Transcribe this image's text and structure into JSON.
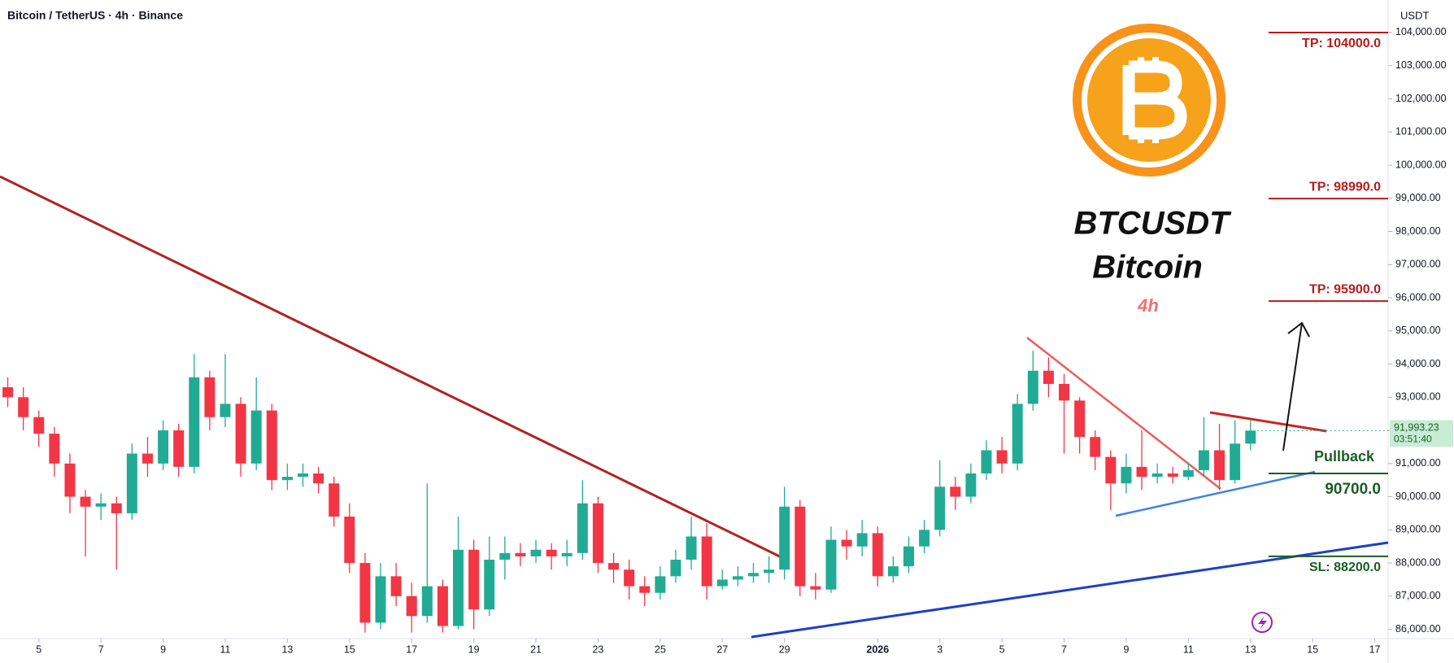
{
  "chart_data": {
    "type": "candlestick",
    "header": "Bitcoin / TetherUS · 4h · Binance",
    "currency": "USDT",
    "title": "BTCUSDT",
    "subtitle": "Bitcoin",
    "timeframe": "4h",
    "pullback_label": "Pullback",
    "countdown": "03:51:40",
    "last_price": {
      "value": 91993.23,
      "label": "91,993.23"
    },
    "up_color": "#22ab94",
    "down_color": "#f23645",
    "x": [
      4,
      4.5,
      5,
      5.5,
      6,
      6.5,
      7,
      7.5,
      8,
      8.5,
      9,
      9.5,
      10,
      10.5,
      11,
      11.5,
      12,
      12.5,
      13,
      13.5,
      14,
      14.5,
      15,
      15.5,
      16,
      16.5,
      17,
      17.5,
      18,
      18.5,
      19,
      19.5,
      20,
      20.5,
      21,
      21.5,
      22,
      22.5,
      23,
      23.5,
      24,
      24.5,
      25,
      25.5,
      26,
      26.5,
      27,
      27.5,
      28,
      28.5,
      29,
      29.5,
      30,
      30.5,
      31,
      31.5,
      32,
      32.5,
      33,
      33.5,
      34,
      34.5,
      35,
      35.5,
      36,
      36.5,
      37,
      37.5,
      38,
      38.5,
      39,
      39.5,
      40,
      40.5,
      41,
      41.5,
      42,
      42.5,
      43,
      43.5,
      44
    ],
    "open": [
      93300,
      93000,
      92400,
      91900,
      91000,
      90000,
      89700,
      89800,
      89500,
      91300,
      91000,
      92000,
      90900,
      93600,
      92400,
      92800,
      91000,
      92600,
      90500,
      90600,
      90700,
      90400,
      89400,
      88000,
      86200,
      87600,
      87000,
      86400,
      87300,
      86100,
      88400,
      86600,
      88100,
      88300,
      88200,
      88400,
      88200,
      88300,
      89800,
      88000,
      87800,
      87300,
      87100,
      87600,
      88100,
      88800,
      87300,
      87500,
      87600,
      87700,
      87800,
      89700,
      87300,
      87200,
      88700,
      88500,
      88900,
      87600,
      87900,
      88500,
      89000,
      90300,
      90000,
      90700,
      91400,
      91000,
      92800,
      93800,
      93400,
      92900,
      91800,
      91200,
      90400,
      90900,
      90600,
      90700,
      90600,
      90800,
      91400,
      90500,
      91600
    ],
    "high": [
      93600,
      93300,
      92600,
      92100,
      91300,
      90200,
      90100,
      90000,
      91600,
      91800,
      92300,
      92200,
      94300,
      93800,
      94300,
      93000,
      93600,
      92800,
      91000,
      91000,
      90900,
      90600,
      89800,
      88300,
      88000,
      88000,
      87400,
      90400,
      87500,
      89400,
      88700,
      88800,
      88800,
      88600,
      88700,
      88600,
      88700,
      90500,
      90000,
      88300,
      88100,
      87600,
      87900,
      88400,
      89400,
      89200,
      87800,
      87900,
      88000,
      88200,
      90300,
      89900,
      87700,
      89100,
      89000,
      89300,
      89100,
      88200,
      88800,
      89300,
      91100,
      90600,
      91000,
      91700,
      91800,
      93100,
      94400,
      94200,
      93700,
      93000,
      92000,
      91400,
      91300,
      92000,
      91000,
      90900,
      91000,
      92400,
      92200,
      92300,
      92300
    ],
    "low": [
      92700,
      92000,
      91500,
      90600,
      89500,
      88200,
      89300,
      87800,
      89300,
      90600,
      90800,
      90600,
      90700,
      92000,
      92100,
      90600,
      90800,
      90200,
      90200,
      90300,
      90100,
      89100,
      87700,
      85900,
      86000,
      86700,
      85900,
      86200,
      85900,
      86000,
      86000,
      86400,
      87500,
      87900,
      88000,
      87800,
      87900,
      88100,
      87700,
      87400,
      86900,
      86700,
      86900,
      87400,
      87800,
      86900,
      87200,
      87300,
      87400,
      87400,
      87500,
      87000,
      86900,
      87100,
      88100,
      88200,
      87300,
      87400,
      87700,
      88300,
      88800,
      89600,
      89800,
      90500,
      90700,
      90800,
      92600,
      93000,
      91300,
      91300,
      90800,
      89600,
      90100,
      90200,
      90400,
      90400,
      90500,
      90600,
      90200,
      90400,
      91400
    ],
    "close": [
      93000,
      92400,
      91900,
      91000,
      90000,
      89700,
      89800,
      89500,
      91300,
      91000,
      92000,
      90900,
      93600,
      92400,
      92800,
      91000,
      92600,
      90500,
      90600,
      90700,
      90400,
      89400,
      88000,
      86200,
      87600,
      87000,
      86400,
      87300,
      86100,
      88400,
      86600,
      88100,
      88300,
      88200,
      88400,
      88200,
      88300,
      89800,
      88000,
      87800,
      87300,
      87100,
      87600,
      88100,
      88800,
      87300,
      87500,
      87600,
      87700,
      87800,
      89700,
      87300,
      87200,
      88700,
      88500,
      88900,
      87600,
      87900,
      88500,
      89000,
      90300,
      90000,
      90700,
      91400,
      91000,
      92800,
      93800,
      93400,
      92900,
      91800,
      91200,
      90400,
      90900,
      90600,
      90700,
      90600,
      90800,
      91400,
      90500,
      91600,
      91993.23
    ],
    "xlim": [
      3.75,
      48.43
    ],
    "ylim": [
      85720,
      104980
    ],
    "xticks": [
      5,
      7,
      9,
      11,
      13,
      15,
      17,
      19,
      21,
      23,
      25,
      27,
      29,
      {
        "value": 32,
        "label": "2026"
      },
      {
        "value": 34,
        "label": "3"
      },
      {
        "value": 36,
        "label": "5"
      },
      {
        "value": 38,
        "label": "7"
      },
      {
        "value": 40,
        "label": "9"
      },
      {
        "value": 42,
        "label": "11"
      },
      {
        "value": 44,
        "label": "13"
      },
      {
        "value": 46,
        "label": "15"
      },
      {
        "value": 48,
        "label": "17"
      }
    ],
    "yticks": [
      {
        "value": 86000,
        "label": "86,000.00"
      },
      {
        "value": 87000,
        "label": "87,000.00"
      },
      {
        "value": 88000,
        "label": "88,000.00"
      },
      {
        "value": 89000,
        "label": "89,000.00"
      },
      {
        "value": 90000,
        "label": "90,000.00"
      },
      {
        "value": 91000,
        "label": "91,000.00"
      },
      {
        "value": 92000,
        "label": "92,000.00"
      },
      {
        "value": 93000,
        "label": "93,000.00"
      },
      {
        "value": 94000,
        "label": "94,000.00"
      },
      {
        "value": 95000,
        "label": "95,000.00"
      },
      {
        "value": 96000,
        "label": "96,000.00"
      },
      {
        "value": 97000,
        "label": "97,000.00"
      },
      {
        "value": 98000,
        "label": "98,000.00"
      },
      {
        "value": 99000,
        "label": "99,000.00"
      },
      {
        "value": 100000,
        "label": "100,000.00"
      },
      {
        "value": 101000,
        "label": "101,000.00"
      },
      {
        "value": 102000,
        "label": "102,000.00"
      },
      {
        "value": 103000,
        "label": "103,000.00"
      },
      {
        "value": 104000,
        "label": "104,000.00"
      }
    ],
    "levels": [
      {
        "label": "TP: 104000.0",
        "value": 104000,
        "color": "#b71c1c"
      },
      {
        "label": "TP: 98990.0",
        "value": 98990,
        "color": "#b71c1c"
      },
      {
        "label": "TP: 95900.0",
        "value": 95900,
        "color": "#b71c1c"
      },
      {
        "label": "90700.0",
        "value": 90700,
        "color": "#1b5e20"
      },
      {
        "label": "SL: 88200.0",
        "value": 88200,
        "color": "#1b5e20"
      }
    ]
  }
}
